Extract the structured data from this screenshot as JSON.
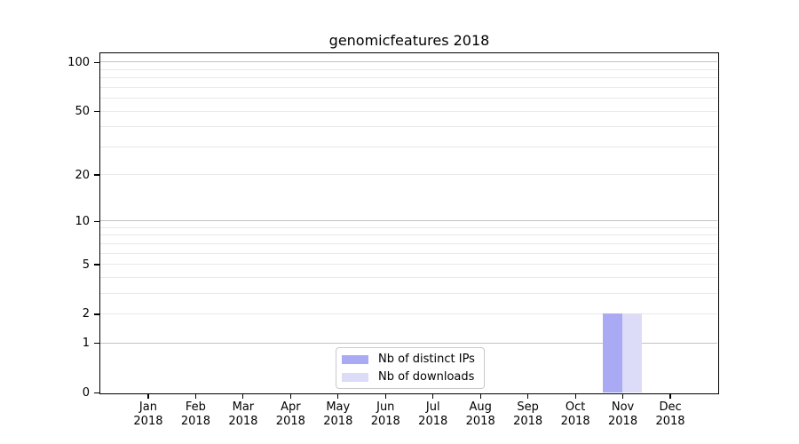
{
  "chart_data": {
    "type": "bar",
    "title": "genomicfeatures 2018",
    "categories": [
      "Jan 2018",
      "Feb 2018",
      "Mar 2018",
      "Apr 2018",
      "May 2018",
      "Jun 2018",
      "Jul 2018",
      "Aug 2018",
      "Sep 2018",
      "Oct 2018",
      "Nov 2018",
      "Dec 2018"
    ],
    "series": [
      {
        "name": "Nb of distinct IPs",
        "color": "#a9a9f4",
        "values": [
          0,
          0,
          0,
          0,
          0,
          0,
          0,
          0,
          0,
          0,
          2,
          0
        ]
      },
      {
        "name": "Nb of downloads",
        "color": "#dcdcf8",
        "values": [
          0,
          0,
          0,
          0,
          0,
          0,
          0,
          0,
          0,
          0,
          2,
          0
        ]
      }
    ],
    "y_axis": {
      "scale": "log1p",
      "tick_labels": [
        "0",
        "1",
        "2",
        "5",
        "10",
        "20",
        "50",
        "100"
      ],
      "tick_values": [
        0,
        1,
        2,
        5,
        10,
        20,
        50,
        100
      ],
      "major_gridlines": [
        1,
        10,
        100
      ],
      "minor_gridlines": [
        2,
        3,
        4,
        5,
        6,
        7,
        8,
        9,
        20,
        30,
        40,
        50,
        60,
        70,
        80,
        90
      ],
      "ylim": [
        0,
        112
      ]
    },
    "x_axis": {
      "tick_count": 12
    },
    "legend_position": "lower center",
    "grid": "horizontal"
  },
  "style": {
    "background": "#ffffff",
    "bar_color_distinct_ips": "#a9a9f4",
    "bar_color_downloads": "#dcdcf8",
    "major_gridline_color": "#c2c2c2",
    "minor_gridline_color": "#e9e9e9",
    "axis_color": "#000000",
    "legend_border_color": "#c9c9c9"
  }
}
